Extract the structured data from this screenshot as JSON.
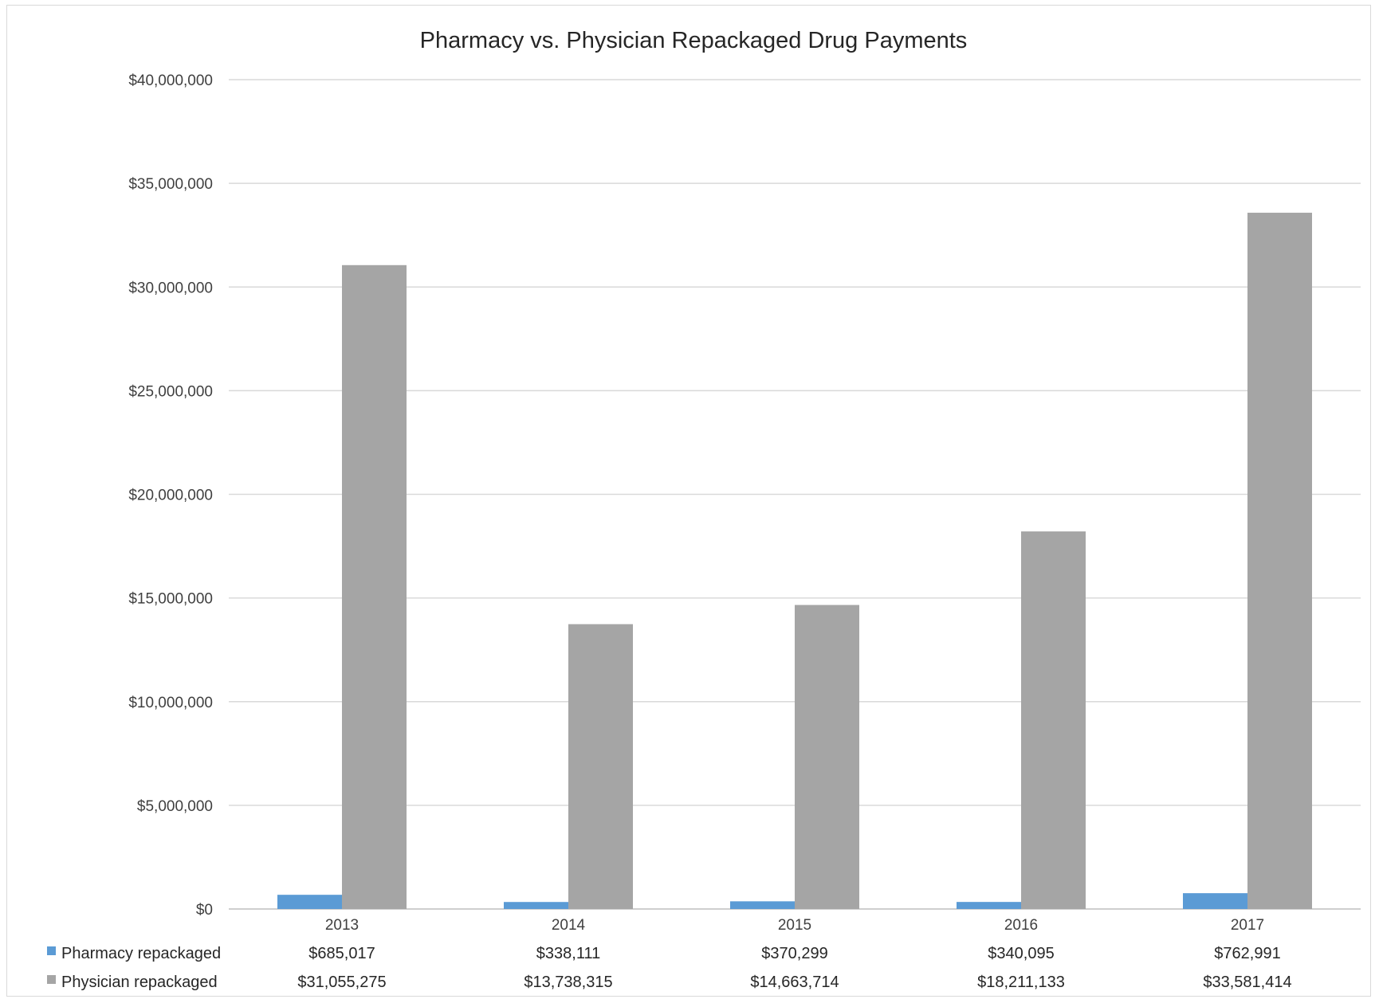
{
  "chart_data": {
    "type": "bar",
    "title": "Pharmacy vs. Physician Repackaged Drug Payments",
    "categories": [
      "2013",
      "2014",
      "2015",
      "2016",
      "2017"
    ],
    "ylim": [
      0,
      40000000
    ],
    "yticks": [
      0,
      5000000,
      10000000,
      15000000,
      20000000,
      25000000,
      30000000,
      35000000,
      40000000
    ],
    "ytick_labels": [
      "$0",
      "$5,000,000",
      "$10,000,000",
      "$15,000,000",
      "$20,000,000",
      "$25,000,000",
      "$30,000,000",
      "$35,000,000",
      "$40,000,000"
    ],
    "grid": true,
    "legend": "data table below chart",
    "series": [
      {
        "name": "Pharmacy repackaged",
        "color": "#5b9bd5",
        "values": [
          685017,
          338111,
          370299,
          340095,
          762991
        ],
        "value_labels": [
          "$685,017",
          "$338,111",
          "$370,299",
          "$340,095",
          "$762,991"
        ]
      },
      {
        "name": "Physician repackaged",
        "color": "#a5a5a5",
        "values": [
          31055275,
          13738315,
          14663714,
          18211133,
          33581414
        ],
        "value_labels": [
          "$31,055,275",
          "$13,738,315",
          "$14,663,714",
          "$18,211,133",
          "$33,581,414"
        ]
      }
    ]
  }
}
